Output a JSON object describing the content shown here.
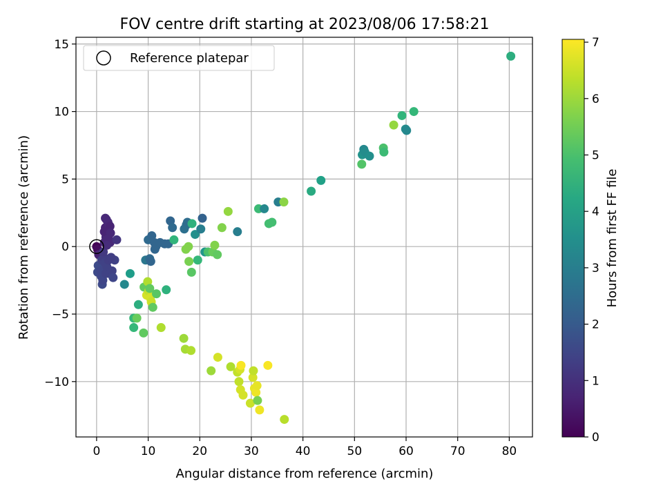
{
  "chart_data": {
    "type": "scatter",
    "title": "FOV centre drift starting at 2023/08/06 17:58:21",
    "xlabel": "Angular distance from reference (arcmin)",
    "ylabel": "Rotation from reference (arcmin)",
    "xlim": [
      -4,
      84.5
    ],
    "ylim": [
      -14.1,
      15.5
    ],
    "xticks": [
      0,
      10,
      20,
      30,
      40,
      50,
      60,
      70,
      80
    ],
    "yticks": [
      -10,
      -5,
      0,
      5,
      10,
      15
    ],
    "xtick_labels": [
      "0",
      "10",
      "20",
      "30",
      "40",
      "50",
      "60",
      "70",
      "80"
    ],
    "ytick_labels": [
      "−10",
      "−5",
      "0",
      "5",
      "10",
      "15"
    ],
    "grid": true,
    "legend": {
      "position": "top-left",
      "entries": [
        {
          "label": "Reference platepar",
          "marker": "open-circle"
        }
      ]
    },
    "reference_point": {
      "x": 0,
      "y": 0
    },
    "colorbar": {
      "label": "Hours from first FF file",
      "colormap": "viridis",
      "range": [
        0,
        7.05
      ],
      "ticks": [
        0,
        1,
        2,
        3,
        4,
        5,
        6,
        7
      ],
      "tick_labels": [
        "0",
        "1",
        "2",
        "3",
        "4",
        "5",
        "6",
        "7"
      ]
    },
    "points": [
      {
        "x": 0.0,
        "y": 0.0,
        "c": 0.02
      },
      {
        "x": 0.2,
        "y": -0.2,
        "c": 0.2
      },
      {
        "x": 0.4,
        "y": -0.6,
        "c": 0.7
      },
      {
        "x": 0.3,
        "y": -1.4,
        "c": 1.6
      },
      {
        "x": 0.2,
        "y": -1.9,
        "c": 1.6
      },
      {
        "x": 0.8,
        "y": -1.8,
        "c": 1.5
      },
      {
        "x": 0.9,
        "y": -2.2,
        "c": 1.5
      },
      {
        "x": 1.1,
        "y": -2.8,
        "c": 1.6
      },
      {
        "x": 1.2,
        "y": -2.5,
        "c": 1.5
      },
      {
        "x": 1.0,
        "y": -1.0,
        "c": 1.4
      },
      {
        "x": 1.4,
        "y": -0.8,
        "c": 1.3
      },
      {
        "x": 1.3,
        "y": -0.4,
        "c": 1.2
      },
      {
        "x": 1.6,
        "y": -1.2,
        "c": 1.4
      },
      {
        "x": 1.8,
        "y": -2.0,
        "c": 1.4
      },
      {
        "x": 2.0,
        "y": -1.5,
        "c": 1.4
      },
      {
        "x": 2.3,
        "y": -1.0,
        "c": 1.3
      },
      {
        "x": 2.5,
        "y": -2.0,
        "c": 1.4
      },
      {
        "x": 3.0,
        "y": -1.8,
        "c": 1.4
      },
      {
        "x": 3.2,
        "y": -2.3,
        "c": 1.5
      },
      {
        "x": 3.5,
        "y": -1.0,
        "c": 1.4
      },
      {
        "x": 2.8,
        "y": -0.8,
        "c": 1.3
      },
      {
        "x": 1.5,
        "y": 0.3,
        "c": 0.8
      },
      {
        "x": 1.8,
        "y": 0.7,
        "c": 0.8
      },
      {
        "x": 1.5,
        "y": 1.1,
        "c": 0.7
      },
      {
        "x": 1.7,
        "y": 1.4,
        "c": 0.7
      },
      {
        "x": 1.7,
        "y": 2.1,
        "c": 0.8
      },
      {
        "x": 1.9,
        "y": 2.0,
        "c": 0.8
      },
      {
        "x": 2.2,
        "y": 1.8,
        "c": 0.8
      },
      {
        "x": 2.4,
        "y": 1.6,
        "c": 0.8
      },
      {
        "x": 2.6,
        "y": 1.5,
        "c": 0.7
      },
      {
        "x": 2.7,
        "y": 1.0,
        "c": 0.8
      },
      {
        "x": 2.3,
        "y": 0.6,
        "c": 0.8
      },
      {
        "x": 2.6,
        "y": 0.3,
        "c": 0.8
      },
      {
        "x": 2.0,
        "y": 0.1,
        "c": 0.9
      },
      {
        "x": 3.9,
        "y": 0.5,
        "c": 1.1
      },
      {
        "x": 5.4,
        "y": -2.8,
        "c": 3.3
      },
      {
        "x": 6.5,
        "y": -2.0,
        "c": 3.9
      },
      {
        "x": 7.2,
        "y": -5.3,
        "c": 4.7
      },
      {
        "x": 7.8,
        "y": -5.3,
        "c": 5.4
      },
      {
        "x": 7.2,
        "y": -6.0,
        "c": 4.7
      },
      {
        "x": 8.1,
        "y": -4.3,
        "c": 4.4
      },
      {
        "x": 9.1,
        "y": -6.4,
        "c": 5.3
      },
      {
        "x": 9.2,
        "y": -3.0,
        "c": 5.3
      },
      {
        "x": 9.9,
        "y": -2.6,
        "c": 6.2
      },
      {
        "x": 9.7,
        "y": -3.6,
        "c": 6.6
      },
      {
        "x": 10.1,
        "y": -3.3,
        "c": 6.4
      },
      {
        "x": 10.4,
        "y": -3.8,
        "c": 6.6
      },
      {
        "x": 10.6,
        "y": -4.1,
        "c": 6.5
      },
      {
        "x": 10.3,
        "y": -3.1,
        "c": 5.3
      },
      {
        "x": 10.9,
        "y": -4.5,
        "c": 5.3
      },
      {
        "x": 11.6,
        "y": -3.5,
        "c": 5.2
      },
      {
        "x": 12.5,
        "y": -6.0,
        "c": 6.2
      },
      {
        "x": 13.5,
        "y": -3.2,
        "c": 4.5
      },
      {
        "x": 9.5,
        "y": -1.0,
        "c": 2.8
      },
      {
        "x": 10.3,
        "y": -0.9,
        "c": 2.4
      },
      {
        "x": 10.5,
        "y": -1.1,
        "c": 2.3
      },
      {
        "x": 10.0,
        "y": 0.5,
        "c": 2.4
      },
      {
        "x": 10.7,
        "y": 0.8,
        "c": 2.3
      },
      {
        "x": 11.2,
        "y": 0.3,
        "c": 2.3
      },
      {
        "x": 11.5,
        "y": 0.0,
        "c": 2.3
      },
      {
        "x": 11.3,
        "y": -0.2,
        "c": 2.3
      },
      {
        "x": 12.3,
        "y": 0.3,
        "c": 2.3
      },
      {
        "x": 13.2,
        "y": 0.2,
        "c": 2.3
      },
      {
        "x": 13.9,
        "y": 0.2,
        "c": 2.3
      },
      {
        "x": 14.3,
        "y": 1.9,
        "c": 2.3
      },
      {
        "x": 14.7,
        "y": 1.4,
        "c": 2.4
      },
      {
        "x": 15.0,
        "y": 0.5,
        "c": 4.6
      },
      {
        "x": 17.0,
        "y": 1.3,
        "c": 2.6
      },
      {
        "x": 17.4,
        "y": 1.6,
        "c": 2.6
      },
      {
        "x": 17.6,
        "y": 1.8,
        "c": 2.5
      },
      {
        "x": 18.5,
        "y": 1.7,
        "c": 4.5
      },
      {
        "x": 19.1,
        "y": 0.9,
        "c": 3.5
      },
      {
        "x": 20.2,
        "y": 1.3,
        "c": 3.0
      },
      {
        "x": 20.5,
        "y": 2.1,
        "c": 2.2
      },
      {
        "x": 17.3,
        "y": -0.2,
        "c": 5.7
      },
      {
        "x": 17.8,
        "y": 0.0,
        "c": 5.7
      },
      {
        "x": 17.9,
        "y": -1.1,
        "c": 5.6
      },
      {
        "x": 18.4,
        "y": -1.9,
        "c": 5.2
      },
      {
        "x": 19.6,
        "y": -1.0,
        "c": 4.7
      },
      {
        "x": 21.0,
        "y": -0.4,
        "c": 3.7
      },
      {
        "x": 21.6,
        "y": -0.4,
        "c": 5.0
      },
      {
        "x": 22.5,
        "y": -0.4,
        "c": 5.4
      },
      {
        "x": 22.9,
        "y": 0.1,
        "c": 5.7
      },
      {
        "x": 23.4,
        "y": -0.6,
        "c": 5.3
      },
      {
        "x": 24.3,
        "y": 1.4,
        "c": 5.7
      },
      {
        "x": 25.5,
        "y": 2.6,
        "c": 5.9
      },
      {
        "x": 27.3,
        "y": 1.1,
        "c": 3.0
      },
      {
        "x": 31.4,
        "y": 2.8,
        "c": 4.8
      },
      {
        "x": 32.5,
        "y": 2.8,
        "c": 3.3
      },
      {
        "x": 33.4,
        "y": 1.7,
        "c": 4.9
      },
      {
        "x": 34.0,
        "y": 1.8,
        "c": 4.9
      },
      {
        "x": 35.2,
        "y": 3.3,
        "c": 3.0
      },
      {
        "x": 36.3,
        "y": 3.3,
        "c": 5.8
      },
      {
        "x": 41.6,
        "y": 4.1,
        "c": 4.3
      },
      {
        "x": 43.5,
        "y": 4.9,
        "c": 4.0
      },
      {
        "x": 51.4,
        "y": 6.1,
        "c": 5.1
      },
      {
        "x": 51.5,
        "y": 6.8,
        "c": 3.6
      },
      {
        "x": 51.8,
        "y": 7.2,
        "c": 3.3
      },
      {
        "x": 52.0,
        "y": 7.0,
        "c": 3.4
      },
      {
        "x": 52.9,
        "y": 6.7,
        "c": 3.5
      },
      {
        "x": 55.6,
        "y": 7.3,
        "c": 5.0
      },
      {
        "x": 55.7,
        "y": 7.0,
        "c": 4.8
      },
      {
        "x": 57.6,
        "y": 9.0,
        "c": 5.9
      },
      {
        "x": 59.2,
        "y": 9.7,
        "c": 4.6
      },
      {
        "x": 59.9,
        "y": 8.7,
        "c": 3.4
      },
      {
        "x": 60.1,
        "y": 8.6,
        "c": 3.3
      },
      {
        "x": 61.5,
        "y": 10.0,
        "c": 4.7
      },
      {
        "x": 80.3,
        "y": 14.1,
        "c": 4.4
      },
      {
        "x": 16.9,
        "y": -6.8,
        "c": 6.0
      },
      {
        "x": 17.2,
        "y": -7.6,
        "c": 6.1
      },
      {
        "x": 18.3,
        "y": -7.7,
        "c": 6.2
      },
      {
        "x": 22.2,
        "y": -9.2,
        "c": 6.0
      },
      {
        "x": 23.5,
        "y": -8.2,
        "c": 6.6
      },
      {
        "x": 26.0,
        "y": -8.9,
        "c": 6.2
      },
      {
        "x": 27.3,
        "y": -9.3,
        "c": 6.4
      },
      {
        "x": 27.8,
        "y": -9.1,
        "c": 6.6
      },
      {
        "x": 28.0,
        "y": -8.8,
        "c": 7.0
      },
      {
        "x": 27.6,
        "y": -10.0,
        "c": 6.4
      },
      {
        "x": 27.9,
        "y": -10.6,
        "c": 6.6
      },
      {
        "x": 28.4,
        "y": -11.0,
        "c": 6.6
      },
      {
        "x": 29.8,
        "y": -11.6,
        "c": 6.5
      },
      {
        "x": 30.3,
        "y": -9.7,
        "c": 6.6
      },
      {
        "x": 30.4,
        "y": -9.2,
        "c": 6.4
      },
      {
        "x": 30.6,
        "y": -10.5,
        "c": 6.8
      },
      {
        "x": 30.9,
        "y": -10.8,
        "c": 6.9
      },
      {
        "x": 31.1,
        "y": -10.3,
        "c": 6.8
      },
      {
        "x": 31.2,
        "y": -11.4,
        "c": 5.6
      },
      {
        "x": 31.6,
        "y": -12.1,
        "c": 6.9
      },
      {
        "x": 33.2,
        "y": -8.8,
        "c": 7.0
      },
      {
        "x": 36.4,
        "y": -12.8,
        "c": 6.3
      }
    ]
  }
}
